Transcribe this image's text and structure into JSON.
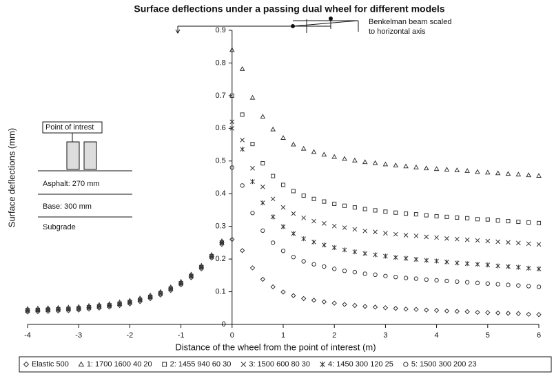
{
  "chart_data": {
    "type": "scatter",
    "title": "Surface deflections under a passing dual wheel for different models",
    "x_label": "Distance of the wheel from the point of interest (m)",
    "y_label": "Surface deflections (mm)",
    "annotations": [
      "Benkelman beam scaled",
      "to horizontal axis",
      "Point of intrest",
      "Asphalt: 270 mm",
      "Base: 300 mm",
      "Subgrade"
    ],
    "xlim": [
      -4,
      6
    ],
    "xticks": [
      -4,
      -3,
      -2,
      -1,
      0,
      1,
      2,
      3,
      4,
      5,
      6
    ],
    "ylim": [
      0,
      0.9
    ],
    "yticks": [
      0,
      0.1,
      0.2,
      0.3,
      0.4,
      0.5,
      0.6,
      0.7,
      0.8,
      0.9
    ],
    "legend": "bottom",
    "x": [
      -4,
      -3.8,
      -3.6,
      -3.4,
      -3.2,
      -3,
      -2.8,
      -2.6,
      -2.4,
      -2.2,
      -2,
      -1.8,
      -1.6,
      -1.4,
      -1.2,
      -1,
      -0.8,
      -0.6,
      -0.4,
      -0.2,
      0,
      0.2,
      0.4,
      0.6,
      0.8,
      1,
      1.2,
      1.4,
      1.6,
      1.8,
      2,
      2.2,
      2.4,
      2.6,
      2.8,
      3,
      3.2,
      3.4,
      3.6,
      3.8,
      4,
      4.2,
      4.4,
      4.6,
      4.8,
      5,
      5.2,
      5.4,
      5.6,
      5.8,
      6
    ],
    "series": [
      {
        "name": "Elastic 500",
        "marker": "diamond",
        "color": "#333333",
        "values": [
          0.038,
          0.039,
          0.04,
          0.041,
          0.042,
          0.044,
          0.047,
          0.05,
          0.053,
          0.058,
          0.063,
          0.07,
          0.079,
          0.09,
          0.104,
          0.121,
          0.143,
          0.17,
          0.203,
          0.245,
          0.26,
          0.226,
          0.173,
          0.138,
          0.115,
          0.099,
          0.088,
          0.079,
          0.074,
          0.069,
          0.065,
          0.061,
          0.058,
          0.055,
          0.053,
          0.051,
          0.049,
          0.047,
          0.046,
          0.044,
          0.043,
          0.041,
          0.04,
          0.039,
          0.037,
          0.036,
          0.035,
          0.034,
          0.033,
          0.031,
          0.03
        ]
      },
      {
        "name": "1: 1700 1600 40 20",
        "marker": "triangle",
        "color": "#333333",
        "values": [
          0.048,
          0.049,
          0.05,
          0.051,
          0.052,
          0.054,
          0.057,
          0.06,
          0.063,
          0.068,
          0.073,
          0.08,
          0.089,
          0.1,
          0.114,
          0.131,
          0.153,
          0.18,
          0.213,
          0.255,
          0.84,
          0.782,
          0.694,
          0.636,
          0.597,
          0.571,
          0.551,
          0.538,
          0.528,
          0.52,
          0.513,
          0.507,
          0.502,
          0.497,
          0.494,
          0.49,
          0.487,
          0.484,
          0.481,
          0.478,
          0.476,
          0.474,
          0.472,
          0.47,
          0.467,
          0.465,
          0.463,
          0.461,
          0.459,
          0.457,
          0.455
        ]
      },
      {
        "name": "2: 1455 940 60 30",
        "marker": "square",
        "color": "#333333",
        "values": [
          0.043,
          0.044,
          0.045,
          0.046,
          0.047,
          0.049,
          0.052,
          0.055,
          0.058,
          0.063,
          0.068,
          0.075,
          0.084,
          0.095,
          0.109,
          0.126,
          0.148,
          0.175,
          0.208,
          0.25,
          0.7,
          0.642,
          0.552,
          0.493,
          0.454,
          0.427,
          0.408,
          0.394,
          0.384,
          0.376,
          0.369,
          0.363,
          0.358,
          0.353,
          0.349,
          0.345,
          0.342,
          0.339,
          0.337,
          0.334,
          0.331,
          0.329,
          0.327,
          0.325,
          0.322,
          0.321,
          0.318,
          0.316,
          0.314,
          0.312,
          0.31
        ]
      },
      {
        "name": "3: 1500 600 80 30",
        "marker": "x",
        "color": "#333333",
        "values": [
          0.043,
          0.044,
          0.045,
          0.046,
          0.047,
          0.049,
          0.052,
          0.055,
          0.058,
          0.063,
          0.068,
          0.075,
          0.084,
          0.095,
          0.109,
          0.126,
          0.148,
          0.175,
          0.208,
          0.25,
          0.62,
          0.564,
          0.478,
          0.421,
          0.384,
          0.358,
          0.339,
          0.326,
          0.316,
          0.309,
          0.301,
          0.296,
          0.291,
          0.286,
          0.283,
          0.279,
          0.276,
          0.273,
          0.271,
          0.268,
          0.266,
          0.263,
          0.261,
          0.259,
          0.257,
          0.255,
          0.253,
          0.251,
          0.249,
          0.247,
          0.245
        ]
      },
      {
        "name": "4: 1450 300 120 25",
        "marker": "asterisk",
        "color": "#333333",
        "values": [
          0.043,
          0.044,
          0.045,
          0.046,
          0.047,
          0.049,
          0.052,
          0.055,
          0.058,
          0.063,
          0.068,
          0.075,
          0.084,
          0.095,
          0.109,
          0.126,
          0.148,
          0.175,
          0.208,
          0.25,
          0.6,
          0.536,
          0.437,
          0.372,
          0.329,
          0.299,
          0.278,
          0.262,
          0.252,
          0.243,
          0.235,
          0.228,
          0.222,
          0.217,
          0.213,
          0.209,
          0.205,
          0.202,
          0.199,
          0.196,
          0.194,
          0.191,
          0.188,
          0.186,
          0.184,
          0.182,
          0.179,
          0.177,
          0.175,
          0.172,
          0.17
        ]
      },
      {
        "name": "5: 1500 300 200 23",
        "marker": "circle",
        "color": "#333333",
        "values": [
          0.043,
          0.044,
          0.045,
          0.046,
          0.047,
          0.049,
          0.052,
          0.055,
          0.058,
          0.063,
          0.068,
          0.075,
          0.084,
          0.095,
          0.109,
          0.126,
          0.148,
          0.175,
          0.208,
          0.25,
          0.48,
          0.425,
          0.341,
          0.287,
          0.25,
          0.225,
          0.206,
          0.193,
          0.184,
          0.177,
          0.17,
          0.164,
          0.16,
          0.155,
          0.152,
          0.148,
          0.145,
          0.142,
          0.14,
          0.137,
          0.135,
          0.133,
          0.131,
          0.129,
          0.127,
          0.125,
          0.123,
          0.121,
          0.119,
          0.117,
          0.115
        ]
      }
    ]
  }
}
